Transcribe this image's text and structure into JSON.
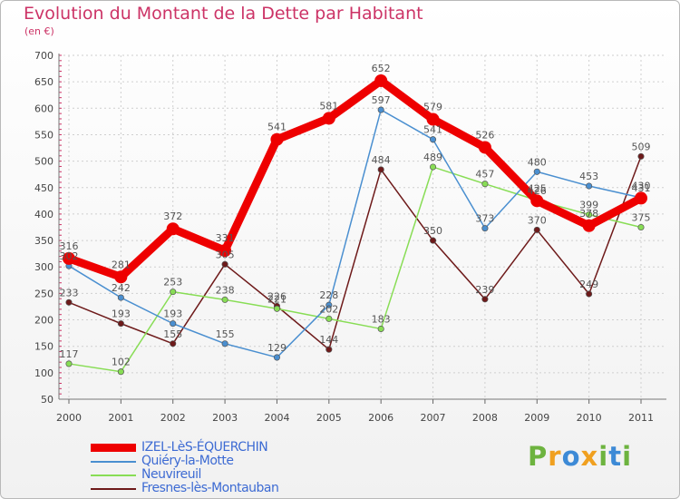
{
  "title": "Evolution du Montant de la Dette par Habitant",
  "subtitle": "(en €)",
  "logo": "Proxiti",
  "chart_data": {
    "type": "line",
    "title": "Evolution du Montant de la Dette par Habitant",
    "subtitle": "(en €)",
    "x": [
      "2000",
      "2001",
      "2002",
      "2003",
      "2004",
      "2005",
      "2006",
      "2007",
      "2008",
      "2009",
      "2010",
      "2011"
    ],
    "ylim": [
      50,
      700
    ],
    "yticks": [
      50,
      100,
      150,
      200,
      250,
      300,
      350,
      400,
      450,
      500,
      550,
      600,
      650,
      700
    ],
    "grid": true,
    "legend_position": "bottom-left",
    "series": [
      {
        "name": "IZEL-LèS-ÉQUERCHIN",
        "color": "#ee0000",
        "values": [
          316,
          281,
          372,
          331,
          541,
          581,
          652,
          579,
          526,
          425,
          378,
          430
        ]
      },
      {
        "name": "Quiéry-la-Motte",
        "color": "#4a8fd0",
        "values": [
          302,
          242,
          193,
          155,
          129,
          228,
          597,
          541,
          373,
          480,
          453,
          431
        ]
      },
      {
        "name": "Neuvireuil",
        "color": "#88dd55",
        "values": [
          117,
          102,
          253,
          238,
          221,
          202,
          183,
          489,
          457,
          426,
          399,
          375
        ]
      },
      {
        "name": "Fresnes-lès-Montauban",
        "color": "#6e1a1a",
        "values": [
          233,
          193,
          155,
          305,
          226,
          144,
          484,
          350,
          239,
          370,
          249,
          509
        ]
      }
    ]
  }
}
